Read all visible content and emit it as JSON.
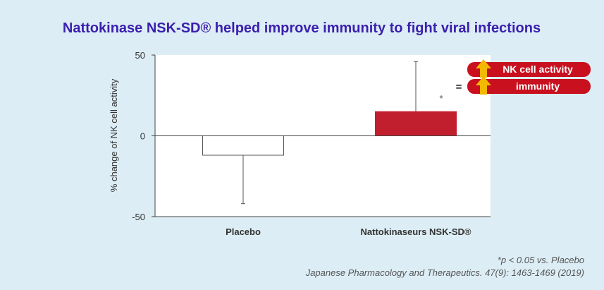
{
  "colors": {
    "title": "#3b1fae",
    "background": "#dcedf5",
    "plot_background": "#ffffff",
    "bar_placebo_fill": "#ffffff",
    "bar_placebo_stroke": "#555555",
    "bar_nsk": "#c21f2e",
    "badge": "#c8101e",
    "arrow": "#f5b800"
  },
  "chart_data": {
    "type": "bar",
    "title": "Nattokinase NSK-SD® helped improve immunity to fight viral infections",
    "ylabel": "% change of NK cell activity",
    "xlabel": "",
    "ylim": [
      -50,
      50
    ],
    "yticks": [
      50,
      0,
      -50
    ],
    "categories": [
      "Placebo",
      "Nattokinaseurs NSK-SD®"
    ],
    "values": [
      -12,
      15
    ],
    "error_upper": [
      0,
      46
    ],
    "error_lower": [
      -42,
      0
    ],
    "significance": [
      "",
      "*"
    ],
    "grid": false
  },
  "badges": {
    "equals": "=",
    "items": [
      {
        "label": "NK cell activity",
        "icon": "up-arrow-icon"
      },
      {
        "label": "immunity",
        "icon": "up-arrow-icon"
      }
    ]
  },
  "footnotes": {
    "significance": "*p < 0.05 vs. Placebo",
    "citation": "Japanese Pharmacology and Therapeutics. 47(9): 1463-1469 (2019)"
  }
}
